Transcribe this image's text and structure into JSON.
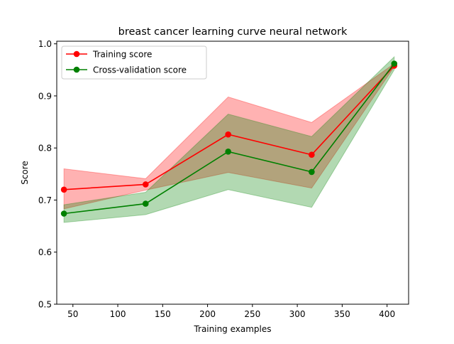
{
  "chart_data": {
    "type": "line",
    "title": "breast cancer learning curve neural network",
    "xlabel": "Training examples",
    "ylabel": "Score",
    "xlim": [
      32,
      424
    ],
    "ylim": [
      0.5,
      1.005
    ],
    "xticks": [
      50,
      100,
      150,
      200,
      250,
      300,
      350,
      400
    ],
    "xtick_labels": [
      "50",
      "100",
      "150",
      "200",
      "250",
      "300",
      "350",
      "400"
    ],
    "yticks": [
      0.5,
      0.6,
      0.7,
      0.8,
      0.9,
      1.0
    ],
    "ytick_labels": [
      "0.5",
      "0.6",
      "0.7",
      "0.8",
      "0.9",
      "1.0"
    ],
    "grid": false,
    "legend_position": "upper left",
    "x": [
      40,
      131,
      223,
      316,
      408
    ],
    "series": [
      {
        "name": "Training score",
        "color": "#ff0000",
        "band_color": "#ff0000",
        "values": [
          0.72,
          0.73,
          0.826,
          0.787,
          0.958
        ],
        "band_upper": [
          0.76,
          0.741,
          0.898,
          0.849,
          0.962
        ],
        "band_lower": [
          0.683,
          0.719,
          0.753,
          0.723,
          0.956
        ]
      },
      {
        "name": "Cross-validation score",
        "color": "#008000",
        "band_color": "#008000",
        "values": [
          0.674,
          0.693,
          0.793,
          0.754,
          0.962
        ],
        "band_upper": [
          0.691,
          0.715,
          0.865,
          0.822,
          0.975
        ],
        "band_lower": [
          0.657,
          0.672,
          0.72,
          0.686,
          0.95
        ]
      }
    ]
  }
}
